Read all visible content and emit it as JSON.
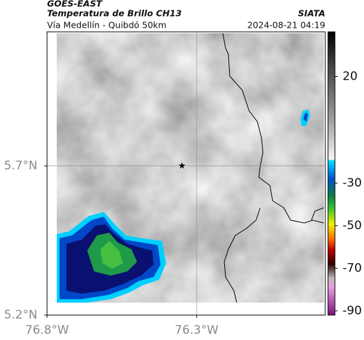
{
  "header": {
    "source": "GOES-EAST",
    "title": "Temperatura de Brillo CH13",
    "route": "Vía Medellín - Quibdó 50km",
    "brand": "SIATA",
    "timestamp": "2024-08-21 04:19"
  },
  "map": {
    "xlim": [
      -76.8,
      -75.87
    ],
    "ylim": [
      5.2,
      6.15
    ],
    "xticks": [
      {
        "value": -76.8,
        "label": "76.8°W"
      },
      {
        "value": -76.3,
        "label": "76.3°W"
      }
    ],
    "yticks": [
      {
        "value": 5.2,
        "label": "5.2°N"
      },
      {
        "value": 5.7,
        "label": "5.7°N"
      }
    ]
  },
  "colorbar": {
    "lim": [
      -92,
      41
    ],
    "ticks": [
      20,
      -30,
      -50,
      -70,
      -90
    ]
  }
}
